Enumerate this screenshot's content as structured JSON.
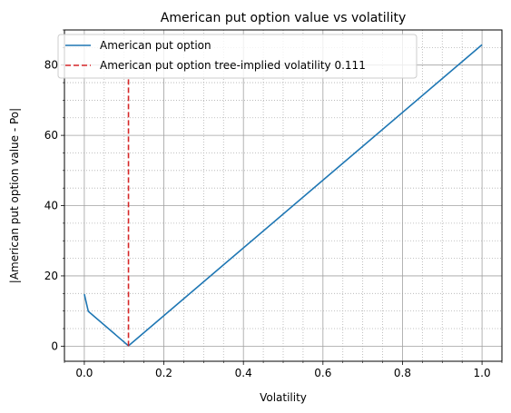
{
  "chart_data": {
    "type": "line",
    "title": "American put option value vs volatility",
    "xlabel": "Volatility",
    "ylabel": "|American put option value - Po|",
    "xlim": [
      -0.05,
      1.05
    ],
    "ylim": [
      -4.3,
      90
    ],
    "xticks": [
      0.0,
      0.2,
      0.4,
      0.6,
      0.8,
      1.0
    ],
    "xtick_labels": [
      "0.0",
      "0.2",
      "0.4",
      "0.6",
      "0.8",
      "1.0"
    ],
    "yticks": [
      0,
      20,
      40,
      60,
      80
    ],
    "ytick_labels": [
      "0",
      "20",
      "40",
      "60",
      "80"
    ],
    "grid": true,
    "legend_position": "upper left",
    "series": [
      {
        "name": "American put option",
        "color": "#1f77b4",
        "style": "solid",
        "x": [
          0.0,
          0.01,
          0.111,
          1.0
        ],
        "y": [
          14.8,
          9.9,
          0.1,
          85.8
        ]
      }
    ],
    "vlines": [
      {
        "name": "American put option tree-implied volatility 0.111",
        "x": 0.111,
        "y_range": [
          0,
          76
        ],
        "color": "#d62728",
        "style": "dashed"
      }
    ]
  }
}
